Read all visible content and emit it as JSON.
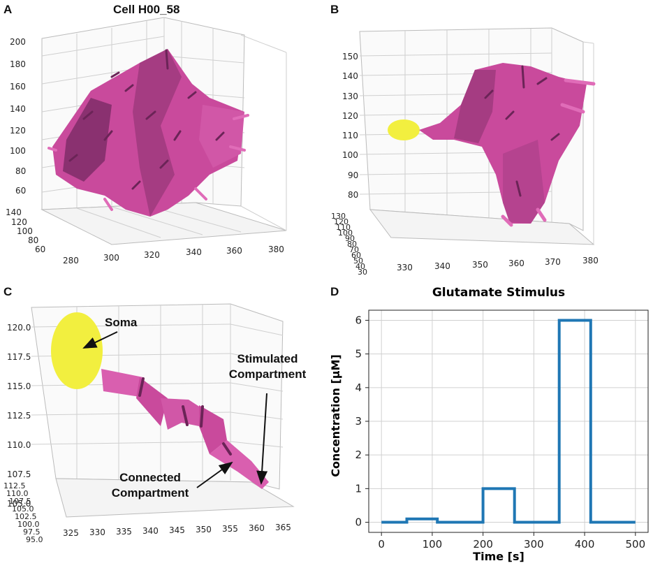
{
  "panels": {
    "a": {
      "letter": "A",
      "title": "Cell H00_58",
      "z_ticks": [
        "200",
        "180",
        "160",
        "140",
        "120",
        "100",
        "80",
        "60"
      ],
      "y_ticks": [
        "140",
        "120",
        "100",
        "80",
        "60"
      ],
      "x_ticks": [
        "280",
        "300",
        "320",
        "340",
        "360",
        "380"
      ]
    },
    "b": {
      "letter": "B",
      "z_ticks": [
        "150",
        "140",
        "130",
        "120",
        "110",
        "100",
        "90",
        "80"
      ],
      "y_ticks": [
        "130",
        "120",
        "110",
        "100",
        "90",
        "80",
        "70",
        "60",
        "50",
        "40",
        "30"
      ],
      "x_ticks": [
        "330",
        "340",
        "350",
        "360",
        "370",
        "380"
      ]
    },
    "c": {
      "letter": "C",
      "z_ticks": [
        "120.0",
        "117.5",
        "115.0",
        "112.5",
        "110.0",
        "107.5",
        "105.0"
      ],
      "y_ticks": [
        "112.5",
        "110.0",
        "107.5",
        "105.0",
        "102.5",
        "100.0",
        "97.5",
        "95.0"
      ],
      "x_ticks": [
        "325",
        "330",
        "335",
        "340",
        "345",
        "350",
        "355",
        "360",
        "365"
      ],
      "annotations": {
        "soma": "Soma",
        "stimulated_line1": "Stimulated",
        "stimulated_line2": "Compartment",
        "connected_line1": "Connected",
        "connected_line2": "Compartment"
      }
    },
    "d": {
      "letter": "D"
    }
  },
  "colors": {
    "dendrite": "#c94a9c",
    "dendrite_dark": "#6b2457",
    "soma": "#f2ef3f",
    "line": "#1f77b4",
    "grid": "#d0d0d0"
  },
  "chart_data": {
    "type": "line",
    "title": "Glutamate Stimulus",
    "xlabel": "Time [s]",
    "ylabel": "Concentration [μM]",
    "xlim": [
      -25,
      525
    ],
    "ylim": [
      -0.3,
      6.3
    ],
    "x_ticks": [
      0,
      100,
      200,
      300,
      400,
      500
    ],
    "y_ticks": [
      0,
      1,
      2,
      3,
      4,
      5,
      6
    ],
    "grid": true,
    "series": [
      {
        "name": "Glutamate stimulus",
        "x": [
          0,
          50,
          50,
          110,
          110,
          200,
          200,
          262,
          262,
          350,
          350,
          412,
          412,
          500
        ],
        "y": [
          0,
          0,
          0.1,
          0.1,
          0,
          0,
          1,
          1,
          0,
          0,
          6,
          6,
          0,
          0
        ]
      }
    ]
  }
}
